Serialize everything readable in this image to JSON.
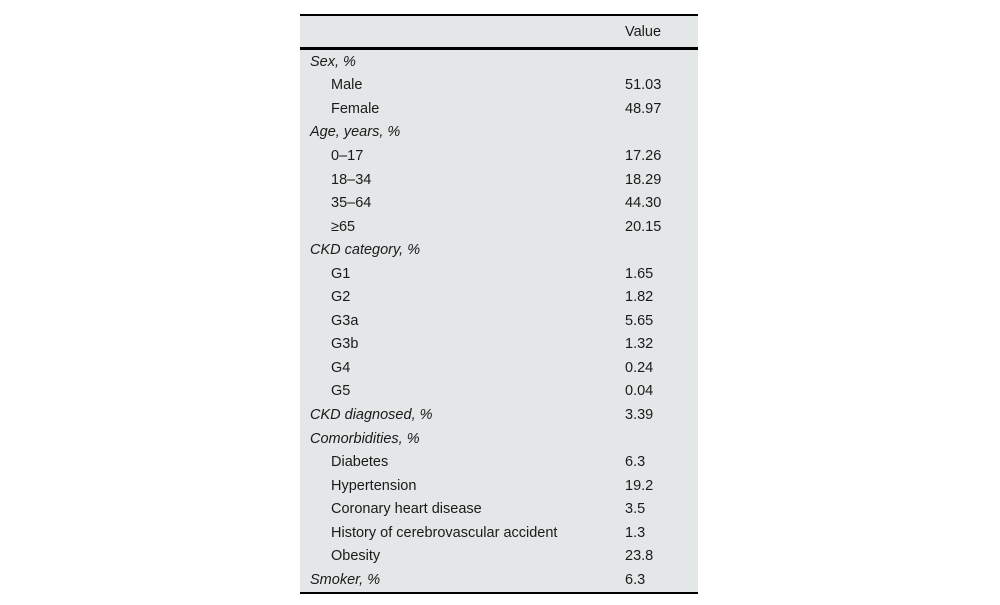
{
  "table": {
    "header": {
      "value_label": "Value"
    },
    "rows": [
      {
        "label": "Sex, %",
        "value": "",
        "style": "section"
      },
      {
        "label": "Male",
        "value": "51.03",
        "style": "item"
      },
      {
        "label": "Female",
        "value": "48.97",
        "style": "item"
      },
      {
        "label": "Age, years, %",
        "value": "",
        "style": "section"
      },
      {
        "label": "0–17",
        "value": "17.26",
        "style": "item"
      },
      {
        "label": "18–34",
        "value": "18.29",
        "style": "item"
      },
      {
        "label": "35–64",
        "value": "44.30",
        "style": "item"
      },
      {
        "label": "≥65",
        "value": "20.15",
        "style": "item"
      },
      {
        "label": "CKD category, %",
        "value": "",
        "style": "section"
      },
      {
        "label": "G1",
        "value": "1.65",
        "style": "item"
      },
      {
        "label": "G2",
        "value": "1.82",
        "style": "item"
      },
      {
        "label": "G3a",
        "value": "5.65",
        "style": "item"
      },
      {
        "label": "G3b",
        "value": "1.32",
        "style": "item"
      },
      {
        "label": "G4",
        "value": "0.24",
        "style": "item"
      },
      {
        "label": "G5",
        "value": "0.04",
        "style": "item"
      },
      {
        "label": "CKD diagnosed, %",
        "value": "3.39",
        "style": "section"
      },
      {
        "label": "Comorbidities, %",
        "value": "",
        "style": "section"
      },
      {
        "label": "Diabetes",
        "value": "6.3",
        "style": "item"
      },
      {
        "label": "Hypertension",
        "value": "19.2",
        "style": "item"
      },
      {
        "label": "Coronary heart disease",
        "value": "3.5",
        "style": "item"
      },
      {
        "label": "History of cerebrovascular accident",
        "value": "1.3",
        "style": "item"
      },
      {
        "label": "Obesity",
        "value": "23.8",
        "style": "item"
      },
      {
        "label": "Smoker, %",
        "value": "6.3",
        "style": "section"
      }
    ],
    "colors": {
      "table_background": "#e3e7e7",
      "rule_color": "#000000",
      "text_color": "#1a1a1a",
      "page_background": "#ffffff"
    }
  }
}
